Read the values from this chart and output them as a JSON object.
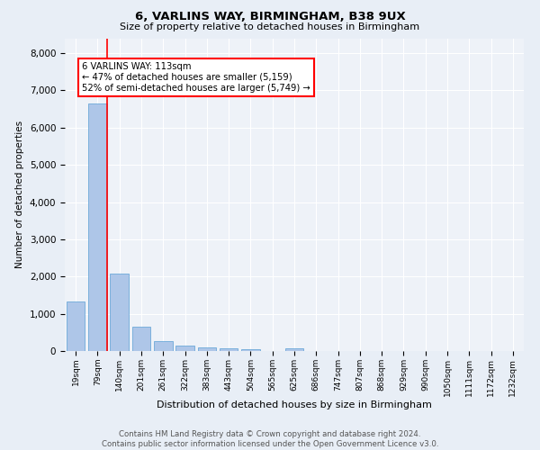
{
  "title": "6, VARLINS WAY, BIRMINGHAM, B38 9UX",
  "subtitle": "Size of property relative to detached houses in Birmingham",
  "xlabel": "Distribution of detached houses by size in Birmingham",
  "ylabel": "Number of detached properties",
  "bar_labels": [
    "19sqm",
    "79sqm",
    "140sqm",
    "201sqm",
    "261sqm",
    "322sqm",
    "383sqm",
    "443sqm",
    "504sqm",
    "565sqm",
    "625sqm",
    "686sqm",
    "747sqm",
    "807sqm",
    "868sqm",
    "929sqm",
    "990sqm",
    "1050sqm",
    "1111sqm",
    "1172sqm",
    "1232sqm"
  ],
  "bar_values": [
    1320,
    6650,
    2080,
    660,
    270,
    150,
    100,
    70,
    50,
    0,
    70,
    0,
    0,
    0,
    0,
    0,
    0,
    0,
    0,
    0,
    0
  ],
  "bar_color": "#aec6e8",
  "bar_edge_color": "#5a9fd4",
  "vline_x_index": 1,
  "vline_color": "red",
  "annotation_text": "6 VARLINS WAY: 113sqm\n← 47% of detached houses are smaller (5,159)\n52% of semi-detached houses are larger (5,749) →",
  "annotation_box_color": "white",
  "annotation_box_edge_color": "red",
  "ylim": [
    0,
    8400
  ],
  "yticks": [
    0,
    1000,
    2000,
    3000,
    4000,
    5000,
    6000,
    7000,
    8000
  ],
  "bg_color": "#e8eef6",
  "plot_bg_color": "#eef2f8",
  "footer": "Contains HM Land Registry data © Crown copyright and database right 2024.\nContains public sector information licensed under the Open Government Licence v3.0."
}
